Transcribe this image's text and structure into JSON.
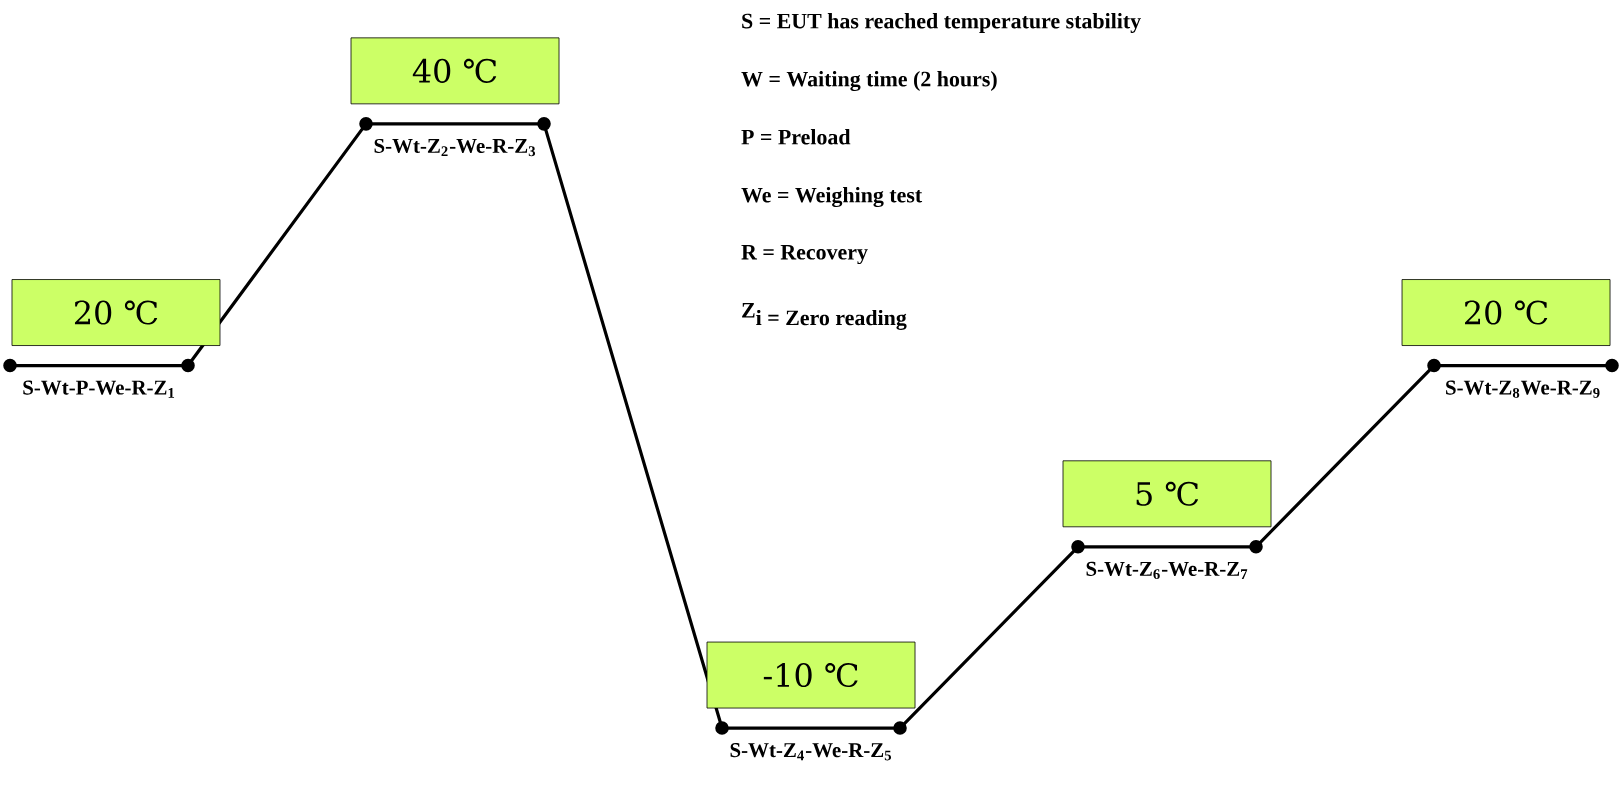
{
  "chart_data": {
    "type": "line",
    "categories": [
      null,
      null,
      null,
      null,
      null,
      null,
      null,
      null,
      null,
      null
    ],
    "values": [
      20,
      20,
      40,
      40,
      -10,
      -10,
      5,
      5,
      20,
      20
    ],
    "value_labels": [
      null,
      "20 ℃",
      null,
      "40 ℃",
      null,
      "-10 ℃",
      null,
      "5 ℃",
      null,
      "20 ℃"
    ],
    "color": "#000000",
    "marker": "circle",
    "line_style": "solid",
    "tick_labels": false,
    "annotations": [
      "S-Wt-P-We-R-Z$_{1}$",
      "S-Wt-Z$_{2}$-We-R-Z$_{3}$",
      "S-Wt-Z$_{4}$-We-R-Z$_{5}$",
      "S-Wt-Z$_{6}$-We-R-Z$_{7}$",
      "S-Wt-Z$_{8}$We-R-Z$_{9}$",
      "S = EUT   has reached temperature stability",
      "W = Waiting   time (2 hours)",
      "P = Preload",
      "We = Weighing test",
      "R = Recovery",
      "\\textbf{Z}_{\\textbf{i = Zero reading}}"
    ]
  }
}
